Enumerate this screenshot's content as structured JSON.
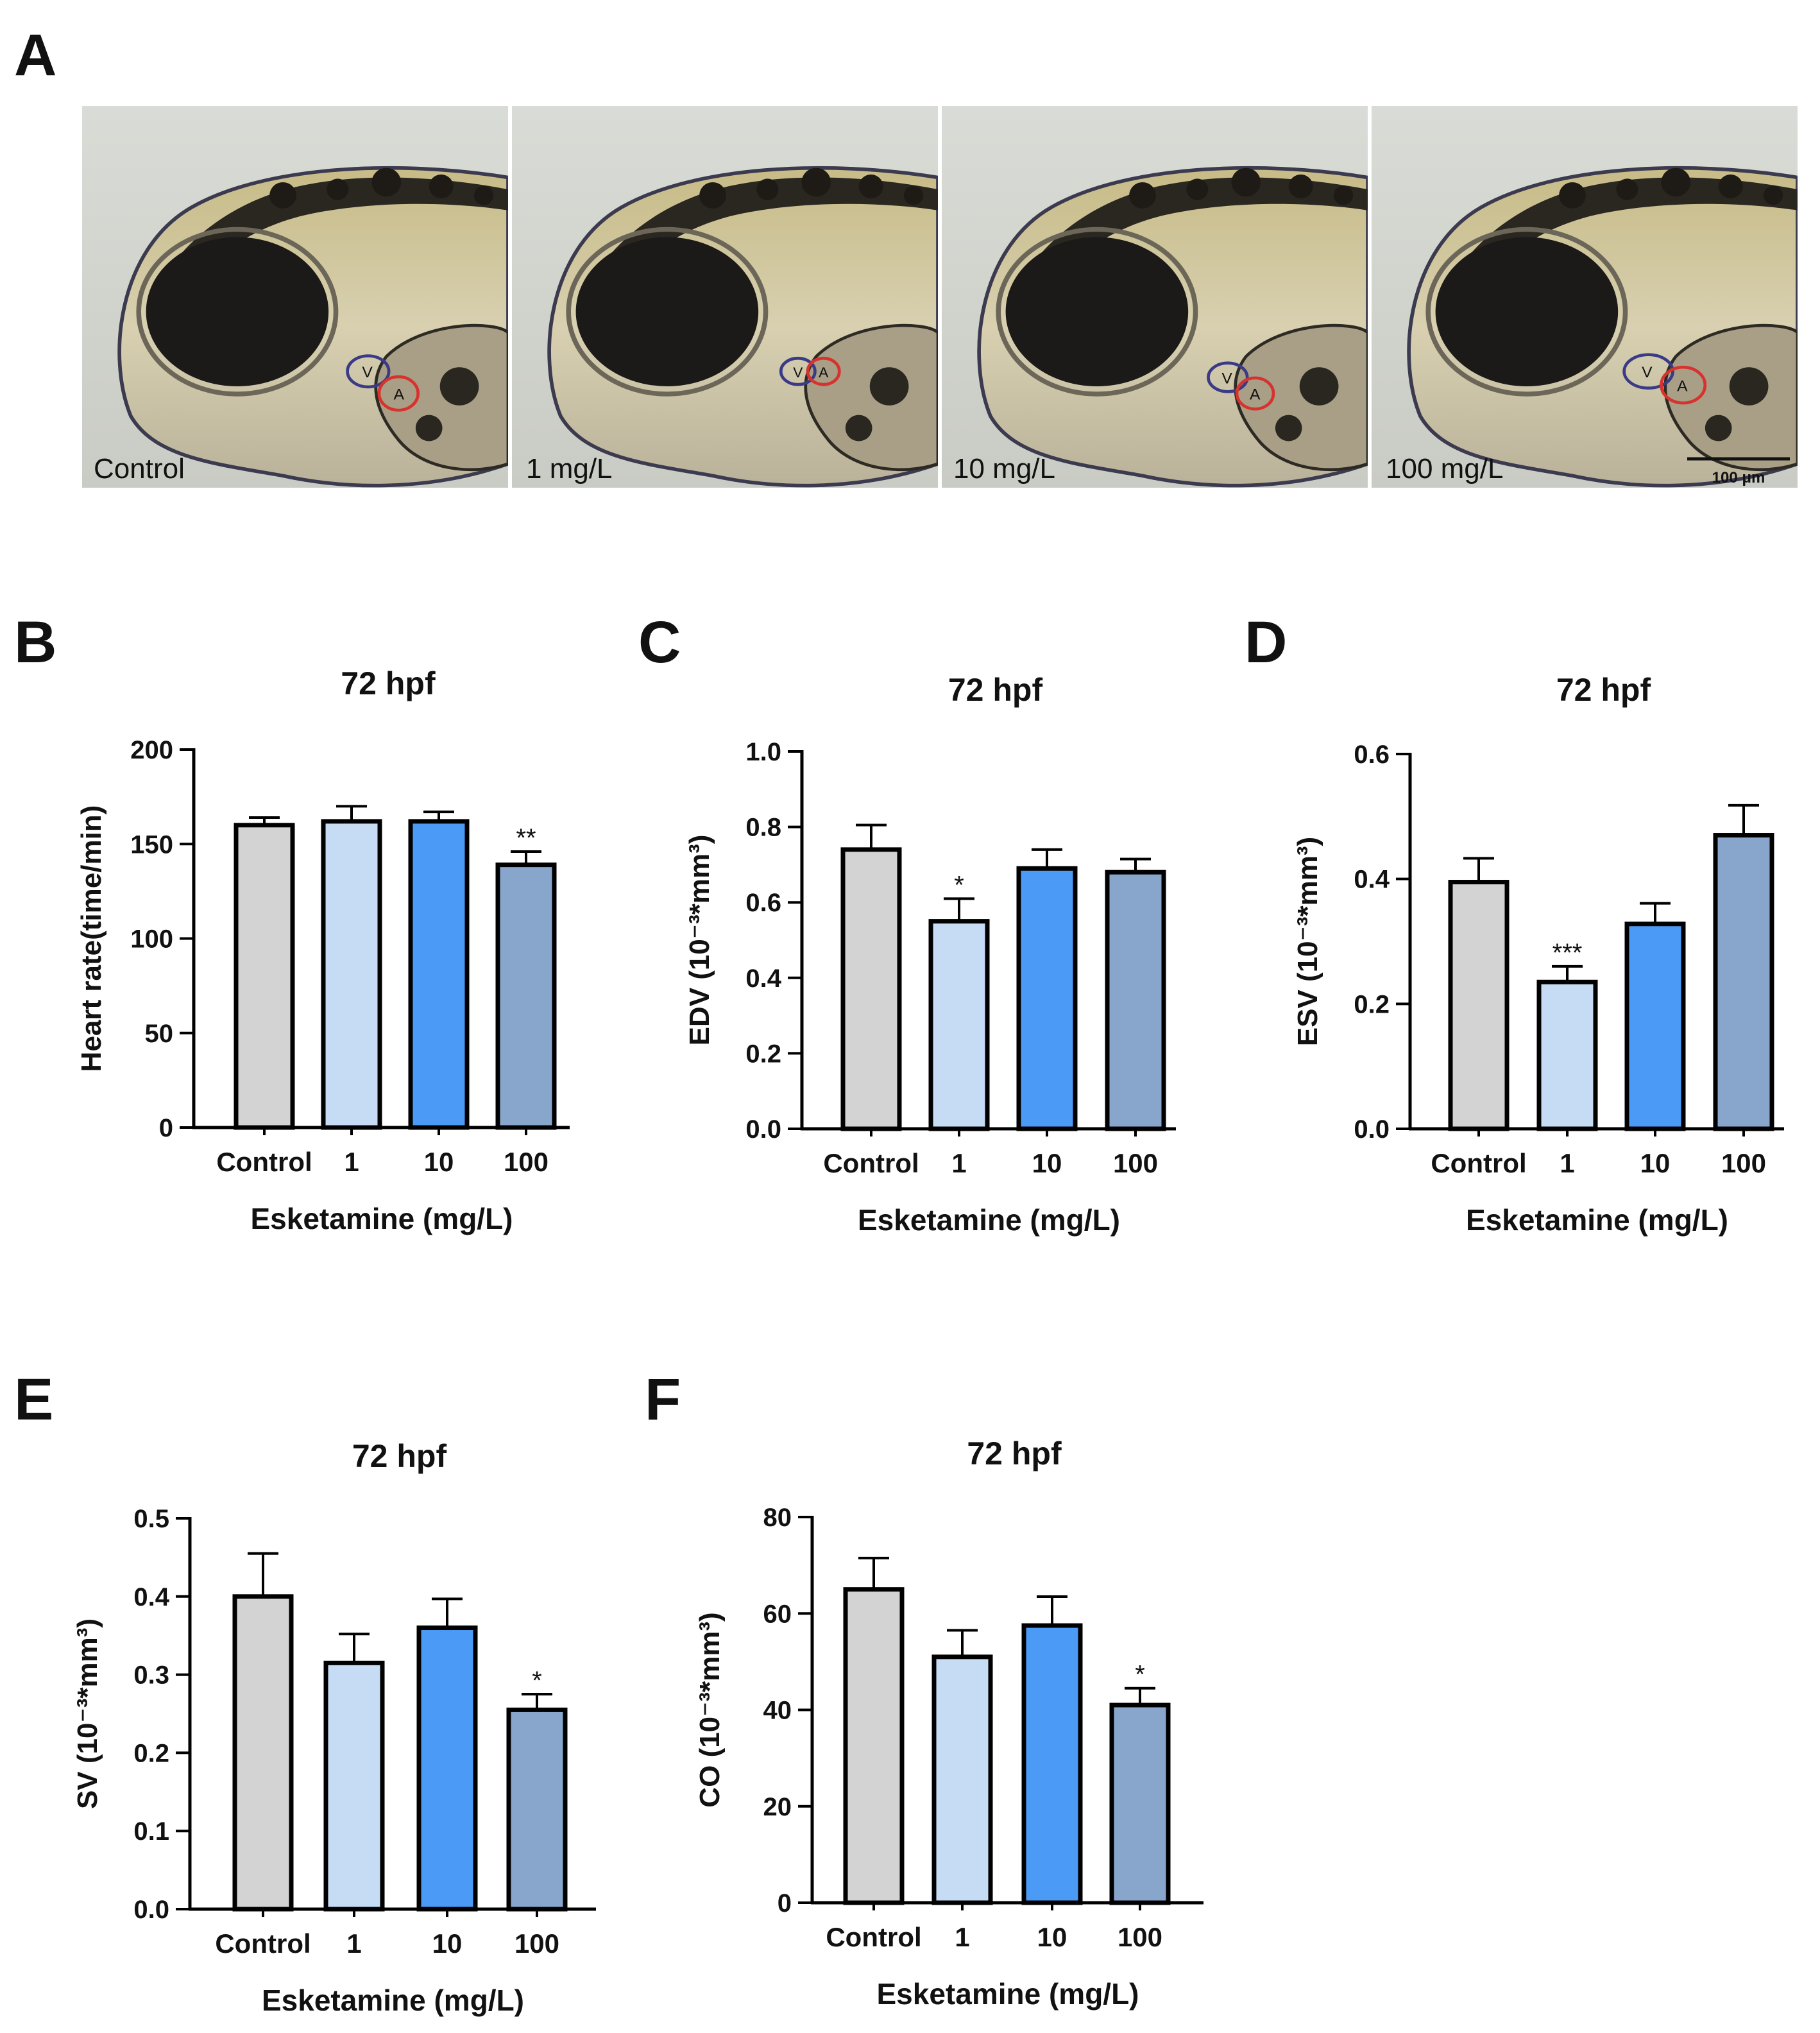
{
  "panel_labels": {
    "a": "A",
    "b": "B",
    "c": "C",
    "d": "D",
    "e": "E",
    "f": "F"
  },
  "photos": {
    "labels": [
      "Control",
      "1 mg/L",
      "10 mg/L",
      "100 mg/L"
    ],
    "scale_bar": "100 μm",
    "ventricle": "V",
    "atrium": "A"
  },
  "colors": {
    "control": "#d3d3d3",
    "low": "#c6dcf5",
    "mid": "#4b9af5",
    "high": "#88a6cc",
    "axis": "#000000"
  },
  "chart_data": [
    {
      "id": "B",
      "type": "bar",
      "title": "72 hpf",
      "xlabel": "Esketamine (mg/L)",
      "ylabel": "Heart rate(time/min)",
      "categories": [
        "Control",
        "1",
        "10",
        "100"
      ],
      "values": [
        160,
        162,
        162,
        139
      ],
      "errors": [
        4,
        8,
        5,
        7
      ],
      "significance": [
        "",
        "",
        "",
        "**"
      ],
      "ylim": [
        0,
        200
      ],
      "yticks": [
        0,
        50,
        100,
        150,
        200
      ],
      "ytick_labels": [
        "0",
        "50",
        "100",
        "150",
        "200"
      ]
    },
    {
      "id": "C",
      "type": "bar",
      "title": "72 hpf",
      "xlabel": "Esketamine (mg/L)",
      "ylabel": "EDV (10⁻³*mm³)",
      "categories": [
        "Control",
        "1",
        "10",
        "100"
      ],
      "values": [
        0.74,
        0.55,
        0.69,
        0.68
      ],
      "errors": [
        0.065,
        0.06,
        0.05,
        0.035
      ],
      "significance": [
        "",
        "*",
        "",
        ""
      ],
      "ylim": [
        0,
        1.0
      ],
      "yticks": [
        0,
        0.2,
        0.4,
        0.6,
        0.8,
        1.0
      ],
      "ytick_labels": [
        "0.0",
        "0.2",
        "0.4",
        "0.6",
        "0.8",
        "1.0"
      ]
    },
    {
      "id": "D",
      "type": "bar",
      "title": "72 hpf",
      "xlabel": "Esketamine (mg/L)",
      "ylabel": "ESV (10⁻³*mm³)",
      "categories": [
        "Control",
        "1",
        "10",
        "100"
      ],
      "values": [
        0.395,
        0.235,
        0.328,
        0.47
      ],
      "errors": [
        0.038,
        0.025,
        0.033,
        0.048
      ],
      "significance": [
        "",
        "***",
        "",
        ""
      ],
      "ylim": [
        0,
        0.6
      ],
      "yticks": [
        0,
        0.2,
        0.4,
        0.6
      ],
      "ytick_labels": [
        "0.0",
        "0.2",
        "0.4",
        "0.6"
      ]
    },
    {
      "id": "E",
      "type": "bar",
      "title": "72 hpf",
      "xlabel": "Esketamine (mg/L)",
      "ylabel": "SV (10⁻³*mm³)",
      "categories": [
        "Control",
        "1",
        "10",
        "100"
      ],
      "values": [
        0.4,
        0.315,
        0.36,
        0.255
      ],
      "errors": [
        0.055,
        0.037,
        0.037,
        0.02
      ],
      "significance": [
        "",
        "",
        "",
        "*"
      ],
      "ylim": [
        0,
        0.5
      ],
      "yticks": [
        0,
        0.1,
        0.2,
        0.3,
        0.4,
        0.5
      ],
      "ytick_labels": [
        "0.0",
        "0.1",
        "0.2",
        "0.3",
        "0.4",
        "0.5"
      ]
    },
    {
      "id": "F",
      "type": "bar",
      "title": "72 hpf",
      "xlabel": "Esketamine (mg/L)",
      "ylabel": "CO (10⁻³*mm³)",
      "categories": [
        "Control",
        "1",
        "10",
        "100"
      ],
      "values": [
        65,
        51,
        57.5,
        41
      ],
      "errors": [
        6.5,
        5.5,
        6,
        3.5
      ],
      "significance": [
        "",
        "",
        "",
        "*"
      ],
      "ylim": [
        0,
        80
      ],
      "yticks": [
        0,
        20,
        40,
        60,
        80
      ],
      "ytick_labels": [
        "0",
        "20",
        "40",
        "60",
        "80"
      ]
    }
  ]
}
